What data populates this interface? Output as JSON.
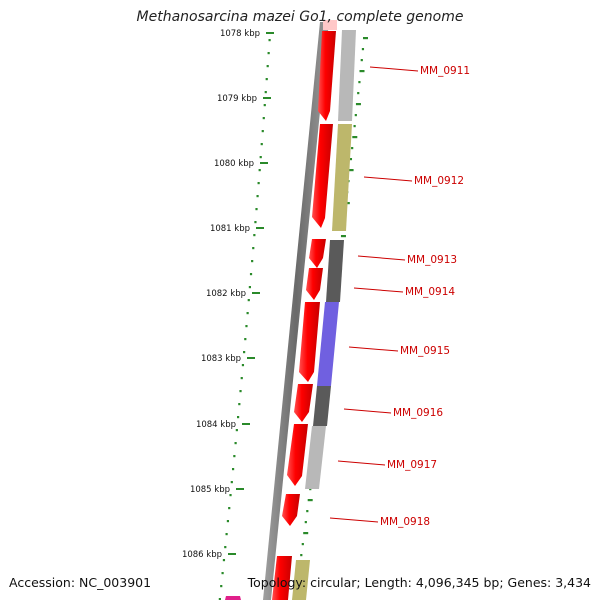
{
  "title": "Methanosarcina mazei Go1, complete genome",
  "footer": {
    "accession": "Accession: NC_003901",
    "summary": "Topology: circular; Length: 4,096,345 bp; Genes: 3,434"
  },
  "ticks": [
    {
      "label": "1078 kbp"
    },
    {
      "label": "1079 kbp"
    },
    {
      "label": "1080 kbp"
    },
    {
      "label": "1081 kbp"
    },
    {
      "label": "1082 kbp"
    },
    {
      "label": "1083 kbp"
    },
    {
      "label": "1084 kbp"
    },
    {
      "label": "1085 kbp"
    },
    {
      "label": "1086 kbp"
    }
  ],
  "genes": [
    {
      "label": "MM_0911",
      "category_color": "#b4b4b4"
    },
    {
      "label": "MM_0912",
      "category_color": "#bdb76b"
    },
    {
      "label": "MM_0913",
      "category_color": "#5a5a5a"
    },
    {
      "label": "MM_0914",
      "category_color": "#5a5a5a"
    },
    {
      "label": "MM_0915",
      "category_color": "#7060e0"
    },
    {
      "label": "MM_0916",
      "category_color": "#5a5a5a"
    },
    {
      "label": "MM_0917",
      "category_color": "#b4b4b4"
    },
    {
      "label": "MM_0918",
      "category_color": ""
    }
  ],
  "colors": {
    "gene_strand": "#ff0000",
    "gene_label": "#cc0000",
    "backbone": "#808080",
    "gc_dots": "#2a8a2a"
  }
}
